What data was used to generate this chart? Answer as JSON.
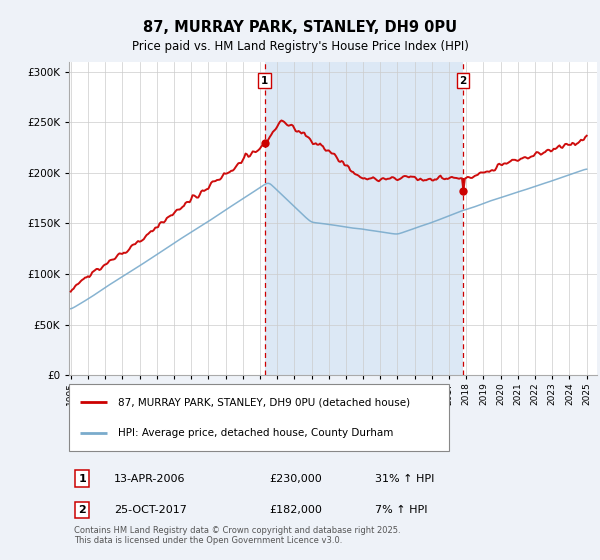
{
  "title": "87, MURRAY PARK, STANLEY, DH9 0PU",
  "subtitle": "Price paid vs. HM Land Registry's House Price Index (HPI)",
  "legend_line1": "87, MURRAY PARK, STANLEY, DH9 0PU (detached house)",
  "legend_line2": "HPI: Average price, detached house, County Durham",
  "annotation1_date": "13-APR-2006",
  "annotation1_price": "£230,000",
  "annotation1_hpi": "31% ↑ HPI",
  "annotation2_date": "25-OCT-2017",
  "annotation2_price": "£182,000",
  "annotation2_hpi": "7% ↑ HPI",
  "sale1_year": 2006.28,
  "sale2_year": 2017.81,
  "sale1_value": 230000,
  "sale2_value": 182000,
  "hpi_sale1_value": 175572,
  "hpi_sale2_value": 170093,
  "ytick_values": [
    0,
    50000,
    100000,
    150000,
    200000,
    250000,
    300000
  ],
  "xstart": 1995,
  "xend": 2025,
  "background_color": "#eef2f8",
  "plot_bg": "#ffffff",
  "shaded_region_color": "#dce8f5",
  "red_line_color": "#cc0000",
  "blue_line_color": "#7aabcc",
  "dashed_line_color": "#cc0000",
  "grid_color": "#cccccc",
  "footer": "Contains HM Land Registry data © Crown copyright and database right 2025.\nThis data is licensed under the Open Government Licence v3.0."
}
